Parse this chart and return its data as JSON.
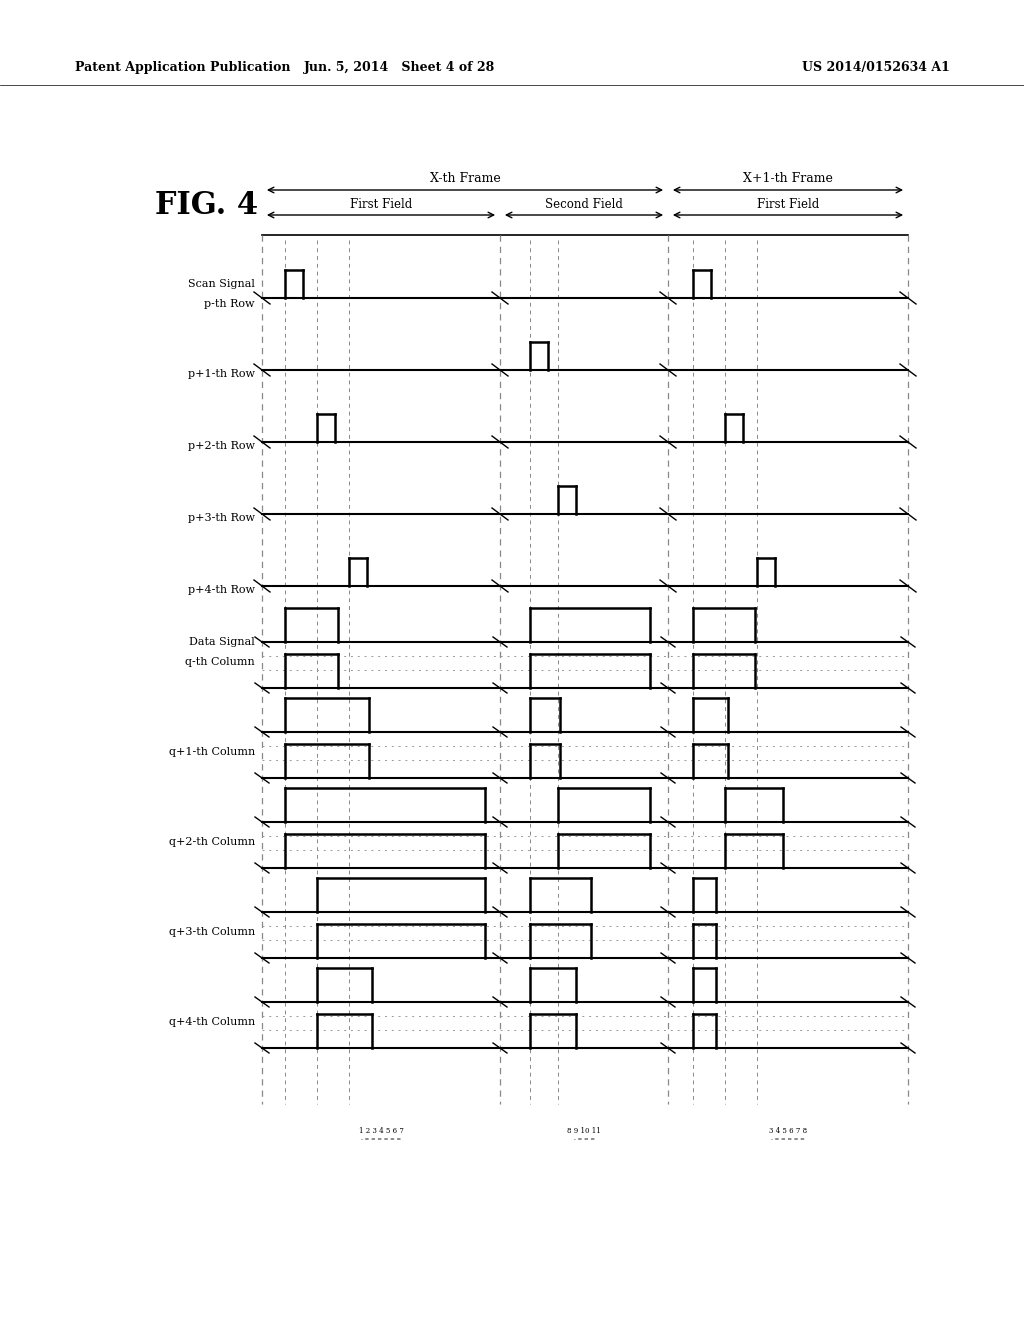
{
  "header_left": "Patent Application Publication",
  "header_mid": "Jun. 5, 2014   Sheet 4 of 28",
  "header_right": "US 2014/0152634 A1",
  "fig_label": "FIG. 4",
  "frame_labels": [
    "X-th Frame",
    "X+1-th Frame"
  ],
  "field_labels": [
    "First Field",
    "Second Field",
    "First Field"
  ],
  "scan_labels": [
    "Scan Signal\np-th Row",
    "p+1-th Row",
    "p+2-th Row",
    "p+3-th Row",
    "p+4-th Row"
  ],
  "data_labels": [
    "Data Signal\nq-th Column",
    "q+1-th Column",
    "q+2-th Column",
    "q+3-th Column",
    "q+4-th Column"
  ],
  "bg_color": "#ffffff"
}
